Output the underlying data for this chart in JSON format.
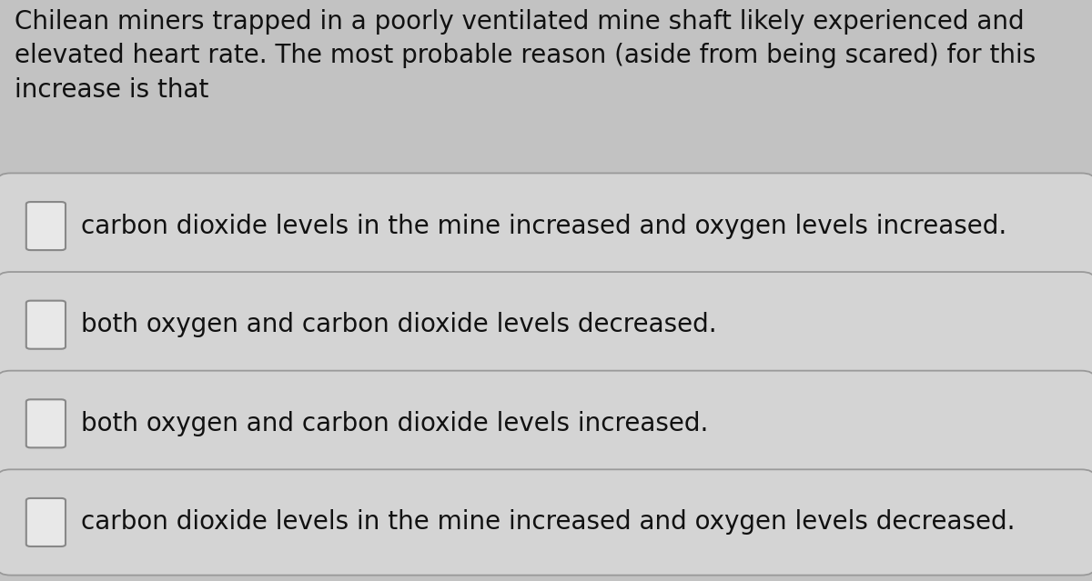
{
  "background_color": "#c2c2c2",
  "question_text": "Chilean miners trapped in a poorly ventilated mine shaft likely experienced and\nelevated heart rate. The most probable reason (aside from being scared) for this\nincrease is that",
  "options": [
    "carbon dioxide levels in the mine increased and oxygen levels increased.",
    "both oxygen and carbon dioxide levels decreased.",
    "both oxygen and carbon dioxide levels increased.",
    "carbon dioxide levels in the mine increased and oxygen levels decreased."
  ],
  "option_box_color": "#d4d4d4",
  "option_box_edge_color": "#999999",
  "text_color": "#111111",
  "question_fontsize": 20,
  "option_fontsize": 20,
  "checkbox_color": "#e8e8e8",
  "checkbox_edge_color": "#888888"
}
